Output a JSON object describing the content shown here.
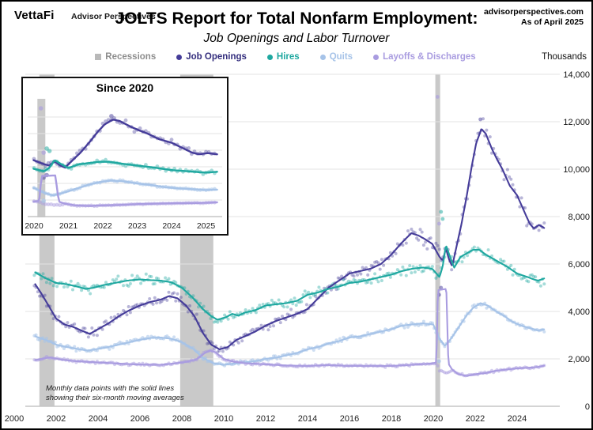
{
  "header": {
    "logo": "VettaFi",
    "logo_sub": "Advisor Perspectives",
    "title": "JOLTS Report for Total Nonfarm Employment:",
    "subtitle": "Job Openings and Labor Turnover",
    "source": "advisorperspectives.com",
    "as_of": "As of April 2025"
  },
  "legend": [
    {
      "label": "Recessions",
      "marker": "square",
      "color": "#b9b9b9",
      "text_color": "#8d8d8d"
    },
    {
      "label": "Job Openings",
      "marker": "dot",
      "color": "#453c99",
      "text_color": "#332d7d"
    },
    {
      "label": "Hires",
      "marker": "dot",
      "color": "#1fa8a0",
      "text_color": "#1fa8a0"
    },
    {
      "label": "Quits",
      "marker": "dot",
      "color": "#a6c3e8",
      "text_color": "#a6c3e8"
    },
    {
      "label": "Layoffs & Discharges",
      "marker": "dot",
      "color": "#a99ce0",
      "text_color": "#a99ce0"
    }
  ],
  "axis": {
    "unit_label": "Thousands",
    "y_ticks": [
      {
        "v": 0,
        "label": "0"
      },
      {
        "v": 2000,
        "label": "2,000"
      },
      {
        "v": 4000,
        "label": "4,000"
      },
      {
        "v": 6000,
        "label": "6,000"
      },
      {
        "v": 8000,
        "label": "8,000"
      },
      {
        "v": 10000,
        "label": "10,000"
      },
      {
        "v": 12000,
        "label": "12,000"
      },
      {
        "v": 14000,
        "label": "14,000"
      }
    ]
  },
  "footnote": {
    "line1": "Monthly data points with the solid lines",
    "line2": "showing their six-month moving averages"
  },
  "inset": {
    "title": "Since 2020",
    "x_ticks": [
      2020,
      2021,
      2022,
      2023,
      2024,
      2025
    ]
  },
  "chart_data": {
    "type": "line",
    "title": "JOLTS Report for Total Nonfarm Employment: Job Openings and Labor Turnover",
    "ylabel": "Thousands",
    "ylim": [
      0,
      14000
    ],
    "x_range": [
      2000,
      2025.4
    ],
    "x_end": 2025.33,
    "grid": "horizontal only",
    "legend_position": "top",
    "recession_color": "#c9c9c9",
    "recessions": [
      [
        2001.2,
        2001.92
      ],
      [
        2007.92,
        2009.5
      ],
      [
        2020.1,
        2020.33
      ]
    ],
    "x_ticks": [
      2000,
      2002,
      2004,
      2006,
      2008,
      2010,
      2012,
      2014,
      2016,
      2018,
      2020,
      2022,
      2024
    ],
    "series": [
      {
        "name": "Job Openings",
        "color": "#453c99",
        "scatter_opacity": 0.38,
        "noise": 270,
        "points": [
          [
            2001.0,
            5150
          ],
          [
            2001.3,
            4750
          ],
          [
            2001.6,
            4300
          ],
          [
            2002.0,
            3700
          ],
          [
            2002.4,
            3450
          ],
          [
            2002.8,
            3350
          ],
          [
            2003.2,
            3200
          ],
          [
            2003.6,
            3050
          ],
          [
            2004.0,
            3250
          ],
          [
            2004.5,
            3500
          ],
          [
            2005.0,
            3800
          ],
          [
            2005.5,
            4050
          ],
          [
            2006.0,
            4250
          ],
          [
            2006.5,
            4400
          ],
          [
            2007.0,
            4500
          ],
          [
            2007.4,
            4650
          ],
          [
            2007.8,
            4550
          ],
          [
            2008.2,
            4250
          ],
          [
            2008.6,
            3800
          ],
          [
            2009.0,
            3100
          ],
          [
            2009.4,
            2600
          ],
          [
            2009.8,
            2400
          ],
          [
            2010.2,
            2500
          ],
          [
            2010.6,
            2800
          ],
          [
            2011.0,
            2950
          ],
          [
            2011.5,
            3150
          ],
          [
            2012.0,
            3400
          ],
          [
            2012.5,
            3600
          ],
          [
            2013.0,
            3750
          ],
          [
            2013.5,
            3900
          ],
          [
            2014.0,
            4100
          ],
          [
            2014.5,
            4550
          ],
          [
            2015.0,
            5000
          ],
          [
            2015.5,
            5300
          ],
          [
            2016.0,
            5600
          ],
          [
            2016.5,
            5700
          ],
          [
            2017.0,
            5800
          ],
          [
            2017.5,
            6000
          ],
          [
            2018.0,
            6400
          ],
          [
            2018.5,
            6900
          ],
          [
            2018.95,
            7300
          ],
          [
            2019.3,
            7200
          ],
          [
            2019.6,
            7050
          ],
          [
            2019.95,
            6850
          ],
          [
            2020.3,
            6300
          ],
          [
            2020.45,
            6150
          ],
          [
            2020.6,
            6650
          ],
          [
            2020.75,
            6200
          ],
          [
            2020.9,
            5900
          ],
          [
            2021.1,
            6700
          ],
          [
            2021.35,
            7700
          ],
          [
            2021.6,
            8900
          ],
          [
            2021.85,
            10200
          ],
          [
            2022.05,
            11100
          ],
          [
            2022.3,
            11700
          ],
          [
            2022.5,
            11500
          ],
          [
            2022.8,
            10850
          ],
          [
            2023.05,
            10400
          ],
          [
            2023.3,
            10000
          ],
          [
            2023.65,
            9300
          ],
          [
            2024.0,
            8900
          ],
          [
            2024.3,
            8300
          ],
          [
            2024.6,
            7700
          ],
          [
            2024.8,
            7500
          ],
          [
            2025.05,
            7650
          ],
          [
            2025.33,
            7500
          ]
        ]
      },
      {
        "name": "Hires",
        "color": "#1fa8a0",
        "scatter_opacity": 0.4,
        "noise": 210,
        "points": [
          [
            2001.0,
            5650
          ],
          [
            2001.5,
            5400
          ],
          [
            2002.0,
            5200
          ],
          [
            2002.5,
            5150
          ],
          [
            2003.0,
            5050
          ],
          [
            2003.4,
            4950
          ],
          [
            2003.8,
            5000
          ],
          [
            2004.2,
            5100
          ],
          [
            2004.8,
            5200
          ],
          [
            2005.4,
            5300
          ],
          [
            2006.0,
            5350
          ],
          [
            2006.5,
            5320
          ],
          [
            2007.0,
            5300
          ],
          [
            2007.5,
            5230
          ],
          [
            2008.0,
            5000
          ],
          [
            2008.5,
            4600
          ],
          [
            2009.0,
            4100
          ],
          [
            2009.4,
            3800
          ],
          [
            2009.7,
            3650
          ],
          [
            2010.1,
            3750
          ],
          [
            2010.4,
            3900
          ],
          [
            2010.7,
            3820
          ],
          [
            2011.0,
            3950
          ],
          [
            2011.5,
            4050
          ],
          [
            2012.0,
            4250
          ],
          [
            2012.5,
            4300
          ],
          [
            2013.0,
            4350
          ],
          [
            2013.5,
            4450
          ],
          [
            2014.0,
            4700
          ],
          [
            2014.5,
            4800
          ],
          [
            2015.0,
            4950
          ],
          [
            2015.5,
            5050
          ],
          [
            2016.0,
            5200
          ],
          [
            2016.5,
            5250
          ],
          [
            2017.0,
            5350
          ],
          [
            2017.5,
            5450
          ],
          [
            2018.0,
            5550
          ],
          [
            2018.5,
            5700
          ],
          [
            2019.0,
            5800
          ],
          [
            2019.5,
            5850
          ],
          [
            2019.95,
            5800
          ],
          [
            2020.3,
            5450
          ],
          [
            2020.45,
            5900
          ],
          [
            2020.6,
            6800
          ],
          [
            2020.8,
            6300
          ],
          [
            2021.0,
            5850
          ],
          [
            2021.3,
            6300
          ],
          [
            2021.6,
            6450
          ],
          [
            2021.9,
            6600
          ],
          [
            2022.2,
            6600
          ],
          [
            2022.5,
            6400
          ],
          [
            2023.0,
            6150
          ],
          [
            2023.5,
            5900
          ],
          [
            2024.0,
            5600
          ],
          [
            2024.5,
            5450
          ],
          [
            2024.8,
            5350
          ],
          [
            2025.0,
            5300
          ],
          [
            2025.33,
            5400
          ]
        ]
      },
      {
        "name": "Quits",
        "color": "#a6c3e8",
        "scatter_opacity": 0.55,
        "noise": 120,
        "points": [
          [
            2001.0,
            2950
          ],
          [
            2001.5,
            2800
          ],
          [
            2002.0,
            2600
          ],
          [
            2002.5,
            2500
          ],
          [
            2003.0,
            2420
          ],
          [
            2003.5,
            2350
          ],
          [
            2004.0,
            2420
          ],
          [
            2004.5,
            2500
          ],
          [
            2005.0,
            2600
          ],
          [
            2005.5,
            2700
          ],
          [
            2006.0,
            2800
          ],
          [
            2006.5,
            2880
          ],
          [
            2007.0,
            2900
          ],
          [
            2007.5,
            2850
          ],
          [
            2008.0,
            2700
          ],
          [
            2008.5,
            2450
          ],
          [
            2009.0,
            2050
          ],
          [
            2009.5,
            1820
          ],
          [
            2010.0,
            1750
          ],
          [
            2010.5,
            1800
          ],
          [
            2011.0,
            1850
          ],
          [
            2011.5,
            1900
          ],
          [
            2012.0,
            2000
          ],
          [
            2012.5,
            2050
          ],
          [
            2013.0,
            2150
          ],
          [
            2013.5,
            2250
          ],
          [
            2014.0,
            2400
          ],
          [
            2014.5,
            2500
          ],
          [
            2015.0,
            2650
          ],
          [
            2015.5,
            2750
          ],
          [
            2016.0,
            2900
          ],
          [
            2016.5,
            2950
          ],
          [
            2017.0,
            3050
          ],
          [
            2017.5,
            3150
          ],
          [
            2018.0,
            3250
          ],
          [
            2018.5,
            3400
          ],
          [
            2019.0,
            3450
          ],
          [
            2019.5,
            3500
          ],
          [
            2020.0,
            3450
          ],
          [
            2020.3,
            2850
          ],
          [
            2020.55,
            2550
          ],
          [
            2020.8,
            2800
          ],
          [
            2021.0,
            3050
          ],
          [
            2021.3,
            3450
          ],
          [
            2021.6,
            3850
          ],
          [
            2021.9,
            4150
          ],
          [
            2022.25,
            4350
          ],
          [
            2022.6,
            4250
          ],
          [
            2023.0,
            4000
          ],
          [
            2023.4,
            3800
          ],
          [
            2023.8,
            3550
          ],
          [
            2024.2,
            3400
          ],
          [
            2024.6,
            3300
          ],
          [
            2025.0,
            3200
          ],
          [
            2025.33,
            3250
          ]
        ]
      },
      {
        "name": "Layoffs & Discharges",
        "color": "#a99ce0",
        "scatter_opacity": 0.5,
        "noise": 80,
        "points": [
          [
            2001.0,
            1950
          ],
          [
            2001.7,
            2060
          ],
          [
            2002.3,
            1960
          ],
          [
            2003.0,
            1900
          ],
          [
            2004.0,
            1850
          ],
          [
            2005.0,
            1800
          ],
          [
            2006.0,
            1760
          ],
          [
            2007.0,
            1750
          ],
          [
            2007.6,
            1800
          ],
          [
            2008.2,
            1870
          ],
          [
            2008.7,
            1980
          ],
          [
            2009.1,
            2250
          ],
          [
            2009.35,
            2350
          ],
          [
            2009.6,
            2280
          ],
          [
            2010.0,
            2000
          ],
          [
            2010.5,
            1870
          ],
          [
            2011.0,
            1820
          ],
          [
            2012.0,
            1770
          ],
          [
            2013.0,
            1720
          ],
          [
            2014.0,
            1700
          ],
          [
            2015.0,
            1740
          ],
          [
            2016.0,
            1700
          ],
          [
            2017.0,
            1700
          ],
          [
            2018.0,
            1700
          ],
          [
            2019.0,
            1750
          ],
          [
            2019.9,
            1800
          ],
          [
            2020.15,
            1850
          ],
          [
            2020.22,
            4900
          ],
          [
            2020.62,
            4950
          ],
          [
            2020.72,
            1800
          ],
          [
            2020.9,
            1550
          ],
          [
            2021.2,
            1350
          ],
          [
            2021.6,
            1280
          ],
          [
            2022.0,
            1350
          ],
          [
            2022.5,
            1400
          ],
          [
            2023.0,
            1500
          ],
          [
            2023.5,
            1550
          ],
          [
            2024.0,
            1600
          ],
          [
            2024.5,
            1620
          ],
          [
            2025.0,
            1660
          ],
          [
            2025.33,
            1720
          ]
        ],
        "scatter_override": [
          [
            2020.15,
            1800
          ],
          [
            2020.3,
            1500
          ],
          [
            2020.6,
            1400
          ],
          [
            2020.85,
            1450
          ]
        ]
      }
    ],
    "outliers": [
      {
        "series": "Layoffs & Discharges",
        "x": 2020.2,
        "y": 13050
      },
      {
        "series": "Layoffs & Discharges",
        "x": 2020.28,
        "y": 7700
      },
      {
        "series": "Hires",
        "x": 2020.37,
        "y": 8200
      },
      {
        "series": "Hires",
        "x": 2020.45,
        "y": 7900
      },
      {
        "series": "Job Openings",
        "x": 2020.28,
        "y": 4700
      },
      {
        "series": "Job Openings",
        "x": 2020.37,
        "y": 5000
      },
      {
        "series": "Job Openings",
        "x": 2022.25,
        "y": 12100
      },
      {
        "series": "Quits",
        "x": 2020.28,
        "y": 1900
      }
    ]
  }
}
